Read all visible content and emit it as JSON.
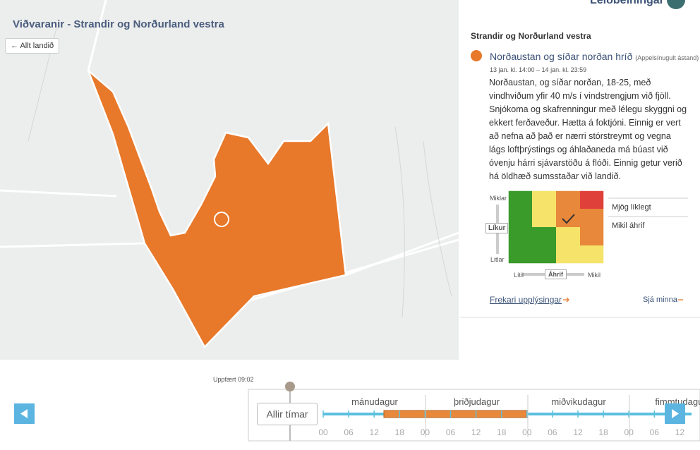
{
  "header": {
    "title": "Viðvaranir - Strandir og Norðurland vestra",
    "help": "Leiðbeiningar"
  },
  "map": {
    "back_button": "Allt landið"
  },
  "panel": {
    "region": "Strandir og Norðurland vestra",
    "warning": {
      "title": "Norðaustan og síðar norðan hríð",
      "level": "(Appelsínugult ástand)",
      "time": "13 jan. kl. 14:00 – 14 jan. kl. 23:59",
      "text": "Norðaustan, og síðar norðan, 18-25, með vindhviðum yfir 40 m/s í vindstrengjum við fjöll. Snjókoma og skafrenningur með lélegu skyggni og ekkert ferðaveður. Hætta á foktjóni. Einnig er vert að nefna að það er nærri stórstreymt og vegna lágs loftþrýstings og áhlaðaneda má búast við óvenju hárri sjávarstöðu á flóði. Einnig getur verið há öldhæð sumsstaðar við landið."
    },
    "matrix": {
      "y_high": "Miklar",
      "y_label": "Líkur",
      "y_low": "Litlar",
      "x_low": "Lítil",
      "x_label": "Áhrif",
      "x_high": "Mikil",
      "likelihood": "Mjög líklegt",
      "impact": "Mikil áhrif"
    },
    "more_info": "Frekari upplýsingar",
    "see_less": "Sjá minna"
  },
  "timeline": {
    "updated": "Uppfært 09:02",
    "all_times": "Allir tímar",
    "days": [
      "mánudagur",
      "þriðjudagur",
      "miðvikudagur",
      "fimmtudagur"
    ],
    "hours": [
      "00",
      "06",
      "12",
      "18",
      "00",
      "06",
      "12",
      "18",
      "00",
      "06",
      "12",
      "18",
      "00",
      "06",
      "12"
    ]
  }
}
